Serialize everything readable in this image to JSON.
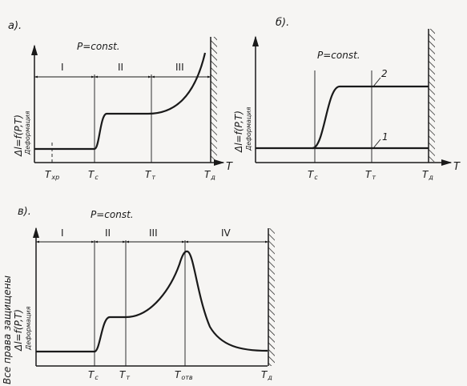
{
  "panels": {
    "a": {
      "label": "а).",
      "condition": "P=const.",
      "y_axis_formula": "Δl=f(P,T)",
      "y_axis_name": "Деформация",
      "x_axis_symbol": "T",
      "regions": [
        "I",
        "II",
        "III"
      ],
      "ticks": [
        {
          "main": "T",
          "sub": "хр"
        },
        {
          "main": "T",
          "sub": "с"
        },
        {
          "main": "T",
          "sub": "т"
        },
        {
          "main": "T",
          "sub": "д"
        }
      ]
    },
    "b": {
      "label": "б).",
      "condition": "P=const.",
      "y_axis_formula": "Δl=f(P,T)",
      "y_axis_name": "Деформация",
      "x_axis_symbol": "T",
      "curve_labels": [
        "1",
        "2"
      ],
      "ticks": [
        {
          "main": "T",
          "sub": "с"
        },
        {
          "main": "T",
          "sub": "т"
        },
        {
          "main": "T",
          "sub": "д"
        }
      ]
    },
    "c": {
      "label": "в).",
      "condition": "P=const.",
      "y_axis_formula": "Δl=f(P,T)",
      "y_axis_name": "Деформация",
      "regions": [
        "I",
        "II",
        "III",
        "IV"
      ],
      "ticks": [
        {
          "main": "T",
          "sub": "с"
        },
        {
          "main": "T",
          "sub": "т"
        },
        {
          "main": "T",
          "sub": "отв"
        },
        {
          "main": "T",
          "sub": "д"
        }
      ]
    }
  },
  "watermark": "Все права защищены"
}
